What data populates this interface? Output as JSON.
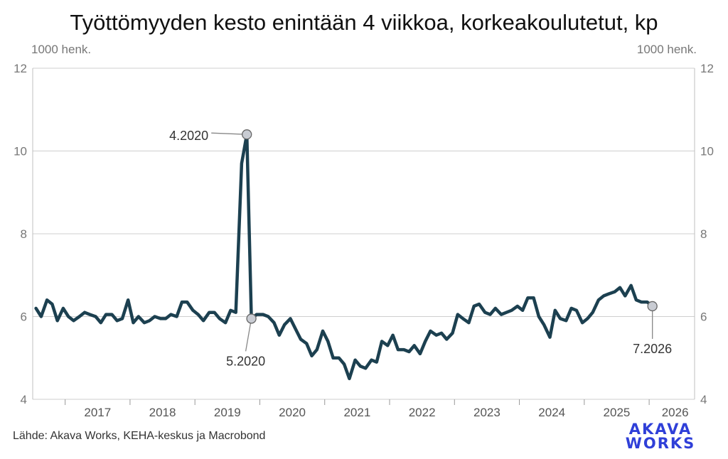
{
  "title": "Työttömyyden kesto enintään 4 viikkoa, korkeakoulutetut, kp",
  "unit_left": "1000 henk.",
  "unit_right": "1000 henk.",
  "source": "Lähde: Akava Works, KEHA-keskus ja Macrobond",
  "logo": {
    "line1": "AKAVA",
    "line2": "WORKS",
    "color": "#2f3fd8"
  },
  "chart_data": {
    "type": "line",
    "title": "Työttömyyden kesto enintään 4 viikkoa, korkeakoulutetut, kp",
    "ylabel": "1000 henk.",
    "ylim": [
      4,
      12
    ],
    "yticks": [
      4,
      6,
      8,
      10,
      12
    ],
    "xlim": [
      2016.5,
      2026.7
    ],
    "x_tick_labels": [
      "2017",
      "2018",
      "2019",
      "2020",
      "2021",
      "2022",
      "2023",
      "2024",
      "2025",
      "2026"
    ],
    "grid": true,
    "line_color": "#1c4050",
    "series": [
      {
        "values": [
          [
            2016.55,
            6.2
          ],
          [
            2016.63,
            6.0
          ],
          [
            2016.72,
            6.4
          ],
          [
            2016.8,
            6.3
          ],
          [
            2016.88,
            5.9
          ],
          [
            2016.97,
            6.2
          ],
          [
            2017.05,
            6.0
          ],
          [
            2017.13,
            5.9
          ],
          [
            2017.22,
            6.0
          ],
          [
            2017.3,
            6.1
          ],
          [
            2017.38,
            6.05
          ],
          [
            2017.47,
            6.0
          ],
          [
            2017.55,
            5.85
          ],
          [
            2017.63,
            6.05
          ],
          [
            2017.72,
            6.05
          ],
          [
            2017.8,
            5.9
          ],
          [
            2017.88,
            5.95
          ],
          [
            2017.97,
            6.4
          ],
          [
            2018.05,
            5.85
          ],
          [
            2018.13,
            6.0
          ],
          [
            2018.22,
            5.85
          ],
          [
            2018.3,
            5.9
          ],
          [
            2018.38,
            6.0
          ],
          [
            2018.47,
            5.95
          ],
          [
            2018.55,
            5.95
          ],
          [
            2018.63,
            6.05
          ],
          [
            2018.72,
            6.0
          ],
          [
            2018.8,
            6.35
          ],
          [
            2018.88,
            6.35
          ],
          [
            2018.97,
            6.15
          ],
          [
            2019.05,
            6.05
          ],
          [
            2019.13,
            5.9
          ],
          [
            2019.22,
            6.1
          ],
          [
            2019.3,
            6.1
          ],
          [
            2019.38,
            5.95
          ],
          [
            2019.47,
            5.85
          ],
          [
            2019.55,
            6.15
          ],
          [
            2019.63,
            6.1
          ],
          [
            2019.72,
            9.7
          ],
          [
            2019.8,
            10.4
          ],
          [
            2019.87,
            5.95
          ],
          [
            2019.95,
            6.05
          ],
          [
            2020.05,
            6.05
          ],
          [
            2020.13,
            6.0
          ],
          [
            2020.22,
            5.85
          ],
          [
            2020.3,
            5.55
          ],
          [
            2020.38,
            5.8
          ],
          [
            2020.47,
            5.95
          ],
          [
            2020.55,
            5.7
          ],
          [
            2020.63,
            5.45
          ],
          [
            2020.72,
            5.35
          ],
          [
            2020.8,
            5.05
          ],
          [
            2020.88,
            5.2
          ],
          [
            2020.97,
            5.65
          ],
          [
            2021.05,
            5.4
          ],
          [
            2021.13,
            5.0
          ],
          [
            2021.22,
            5.0
          ],
          [
            2021.3,
            4.85
          ],
          [
            2021.38,
            4.5
          ],
          [
            2021.47,
            4.95
          ],
          [
            2021.55,
            4.8
          ],
          [
            2021.63,
            4.75
          ],
          [
            2021.72,
            4.95
          ],
          [
            2021.8,
            4.9
          ],
          [
            2021.88,
            5.4
          ],
          [
            2021.97,
            5.3
          ],
          [
            2022.05,
            5.55
          ],
          [
            2022.13,
            5.2
          ],
          [
            2022.22,
            5.2
          ],
          [
            2022.3,
            5.15
          ],
          [
            2022.38,
            5.3
          ],
          [
            2022.47,
            5.1
          ],
          [
            2022.55,
            5.4
          ],
          [
            2022.63,
            5.65
          ],
          [
            2022.72,
            5.55
          ],
          [
            2022.8,
            5.6
          ],
          [
            2022.88,
            5.45
          ],
          [
            2022.97,
            5.6
          ],
          [
            2023.05,
            6.05
          ],
          [
            2023.13,
            5.95
          ],
          [
            2023.22,
            5.85
          ],
          [
            2023.3,
            6.25
          ],
          [
            2023.38,
            6.3
          ],
          [
            2023.47,
            6.1
          ],
          [
            2023.55,
            6.05
          ],
          [
            2023.63,
            6.2
          ],
          [
            2023.72,
            6.05
          ],
          [
            2023.8,
            6.1
          ],
          [
            2023.88,
            6.15
          ],
          [
            2023.97,
            6.25
          ],
          [
            2024.05,
            6.15
          ],
          [
            2024.13,
            6.45
          ],
          [
            2024.22,
            6.45
          ],
          [
            2024.3,
            6.0
          ],
          [
            2024.38,
            5.8
          ],
          [
            2024.47,
            5.5
          ],
          [
            2024.55,
            6.15
          ],
          [
            2024.63,
            5.95
          ],
          [
            2024.72,
            5.9
          ],
          [
            2024.8,
            6.2
          ],
          [
            2024.88,
            6.15
          ],
          [
            2024.97,
            5.85
          ],
          [
            2025.05,
            5.95
          ],
          [
            2025.13,
            6.1
          ],
          [
            2025.22,
            6.4
          ],
          [
            2025.3,
            6.5
          ],
          [
            2025.38,
            6.55
          ],
          [
            2025.47,
            6.6
          ],
          [
            2025.55,
            6.7
          ],
          [
            2025.63,
            6.5
          ],
          [
            2025.72,
            6.75
          ],
          [
            2025.8,
            6.4
          ],
          [
            2025.88,
            6.35
          ],
          [
            2025.97,
            6.35
          ],
          [
            2026.05,
            6.25
          ]
        ]
      }
    ],
    "annotations": [
      {
        "label": "4.2020",
        "x": 2019.8,
        "y": 10.4,
        "side": "left"
      },
      {
        "label": "5.2020",
        "x": 2019.87,
        "y": 5.95,
        "side": "below"
      },
      {
        "label": "7.2026",
        "x": 2026.05,
        "y": 6.25,
        "side": "below"
      }
    ]
  }
}
